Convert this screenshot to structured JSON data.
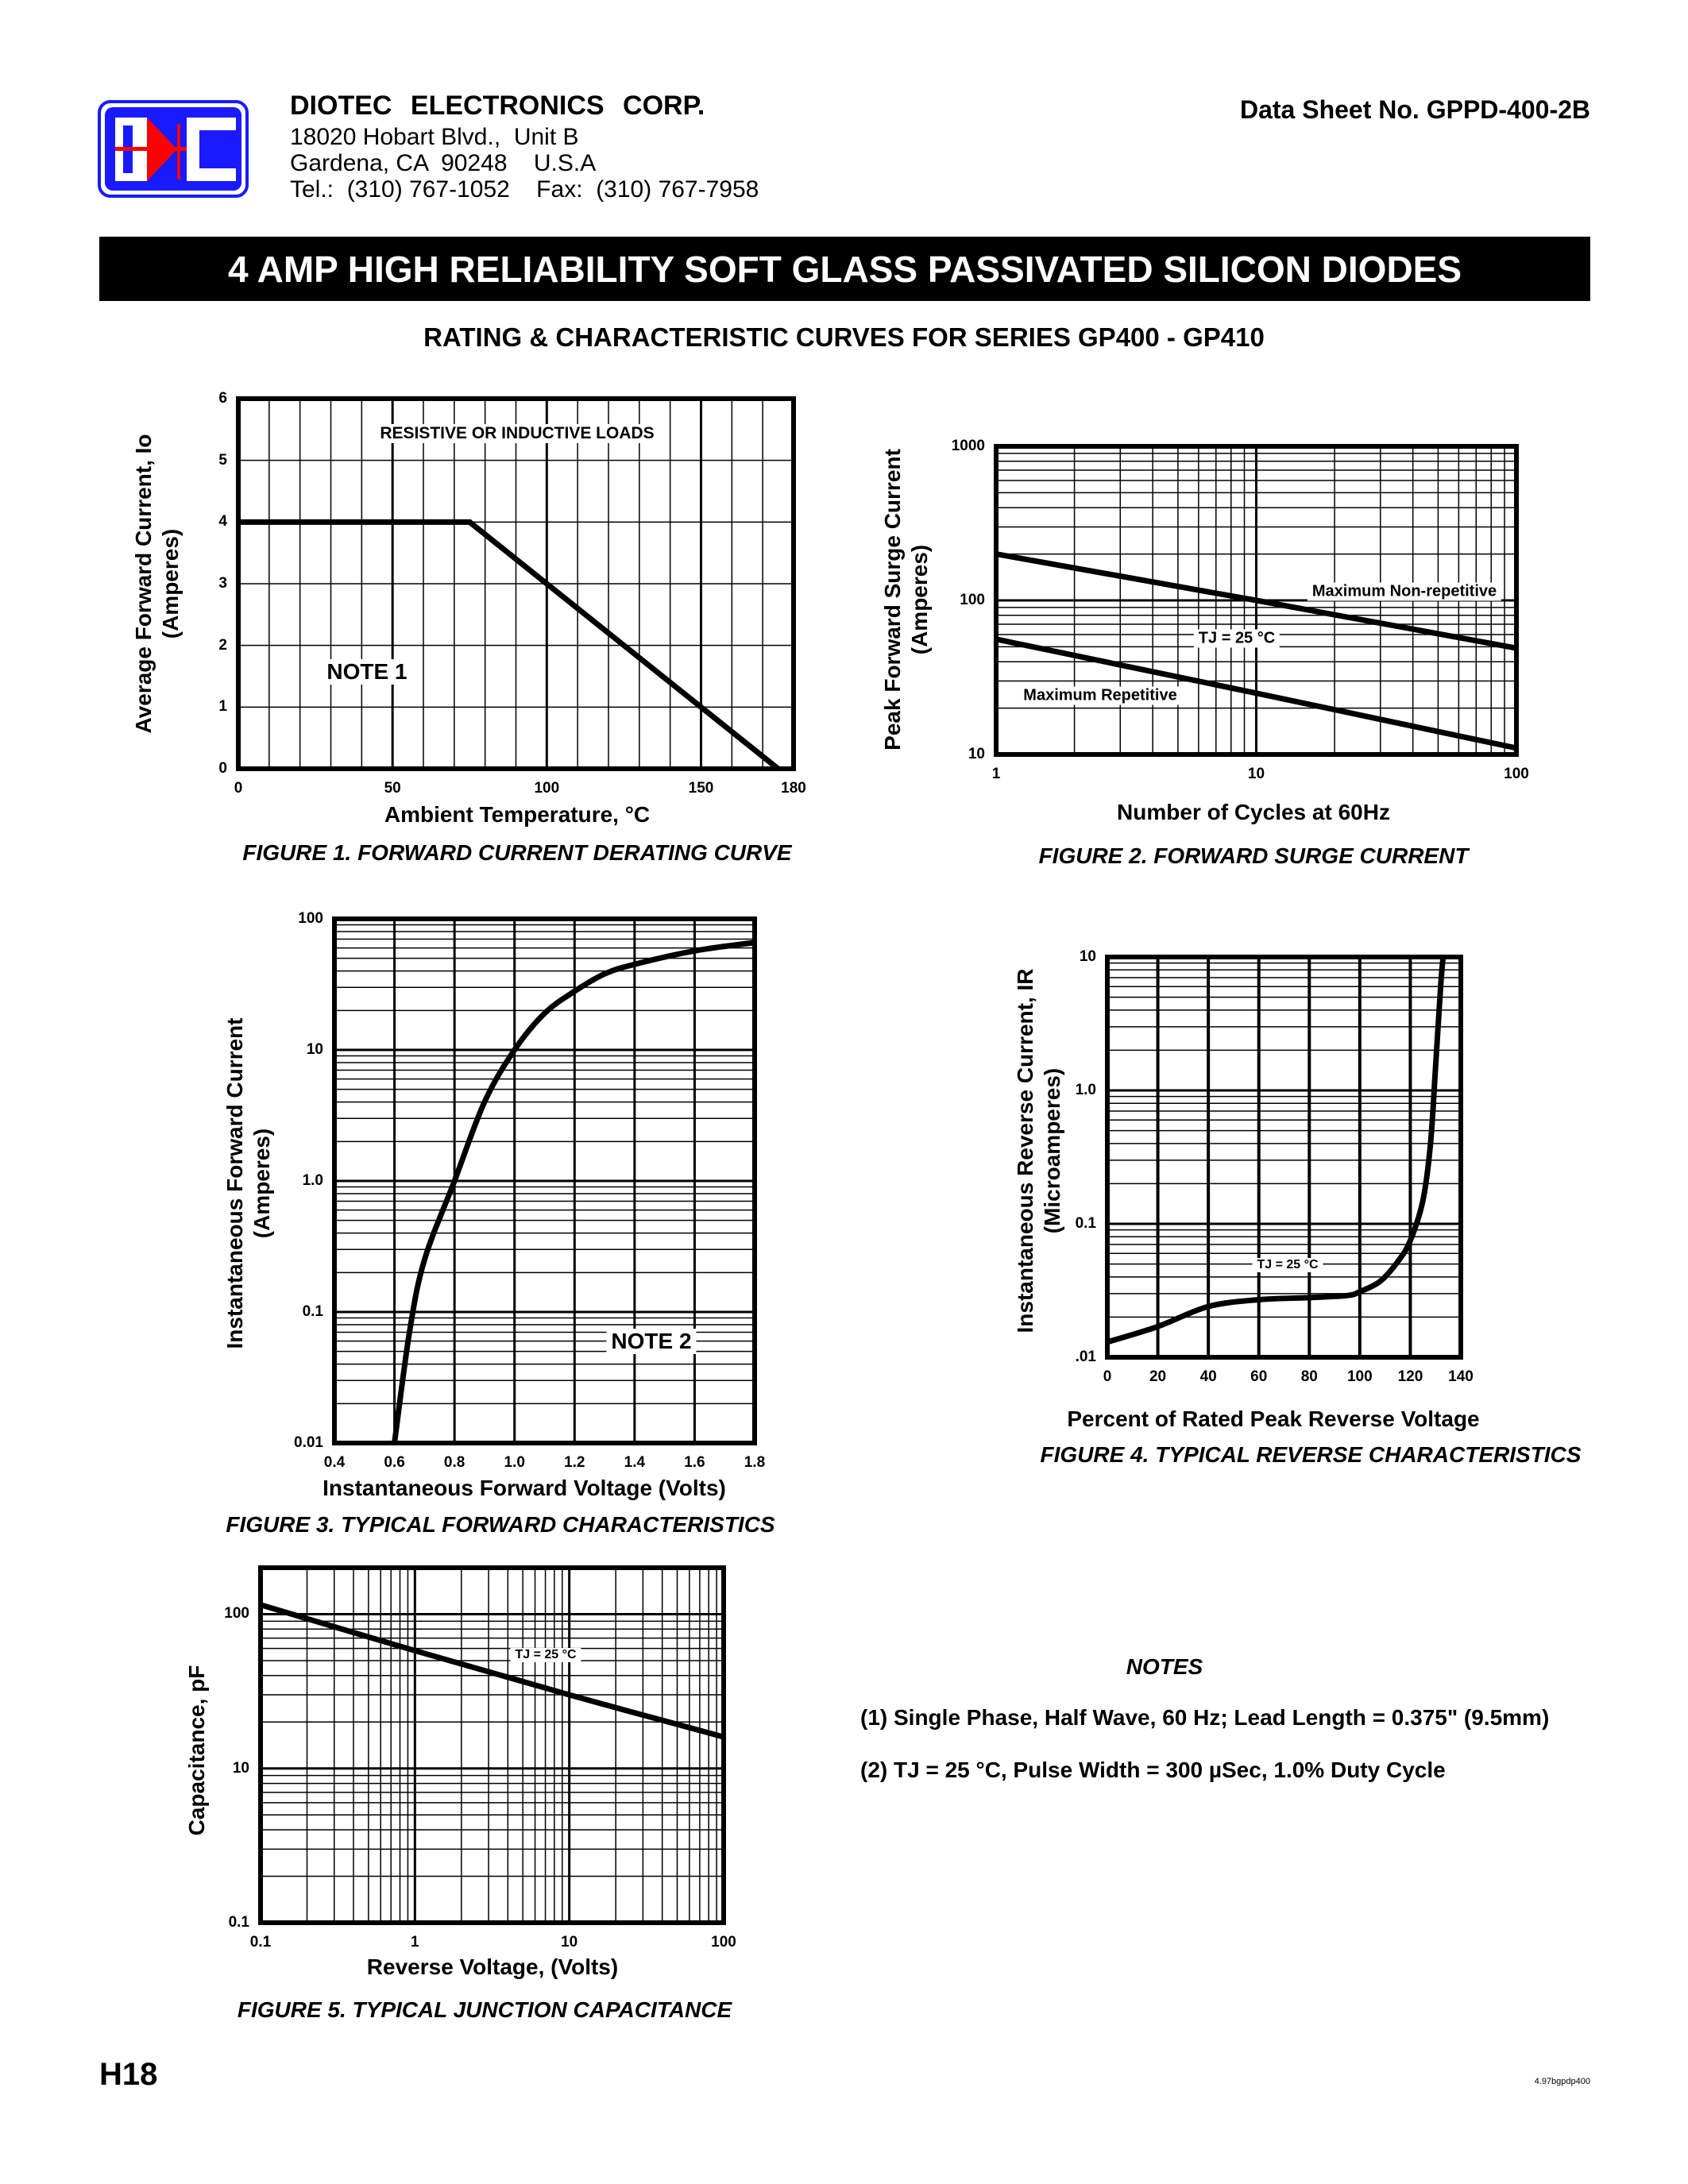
{
  "header": {
    "logo_text": "DIC",
    "company": "DIOTEC ELECTRONICS CORP.",
    "address_lines": [
      "18020 Hobart Blvd.,  Unit B",
      "Gardena, CA  90248    U.S.A",
      "Tel.:  (310) 767-1052    Fax:  (310) 767-7958"
    ],
    "datasheet_no": "Data Sheet No.  GPPD-400-2B",
    "colors": {
      "logo_blue": "#1a1aff",
      "logo_red": "#ff0000"
    }
  },
  "title": "4 AMP HIGH RELIABILITY SOFT GLASS PASSIVATED SILICON DIODES",
  "subtitle": "RATING & CHARACTERISTIC CURVES FOR SERIES GP400 - GP410",
  "chart_data": [
    {
      "type": "line",
      "caption": "FIGURE 1.  FORWARD CURRENT DERATING CURVE",
      "xlabel": "Ambient  Temperature, °C",
      "ylabel": [
        "Average Forward Current, Io",
        "(Amperes)"
      ],
      "x_scale": "linear",
      "y_scale": "linear",
      "xlim": [
        0,
        180
      ],
      "ylim": [
        0,
        6
      ],
      "x_ticks": [
        0,
        50,
        100,
        150,
        180
      ],
      "x_tick_labels": [
        "0",
        "50",
        "100",
        "150",
        "180"
      ],
      "y_ticks": [
        0,
        1,
        2,
        3,
        4,
        5,
        6
      ],
      "y_tick_labels": [
        "0",
        "1",
        "2",
        "3",
        "4",
        "5",
        "6"
      ],
      "grid": true,
      "annotations": [
        "RESISTIVE OR INDUCTIVE LOADS",
        "NOTE 1"
      ],
      "series": [
        {
          "x": [
            0,
            75,
            175
          ],
          "y": [
            4,
            4,
            0
          ]
        }
      ]
    },
    {
      "type": "line",
      "caption": "FIGURE 2.  FORWARD SURGE CURRENT",
      "xlabel": "Number of Cycles at 60Hz",
      "ylabel": [
        "Peak Forward Surge Current",
        "(Amperes)"
      ],
      "x_scale": "log",
      "y_scale": "log",
      "xlim": [
        1,
        100
      ],
      "ylim": [
        10,
        1000
      ],
      "x_ticks": [
        1,
        10,
        100
      ],
      "x_tick_labels": [
        "1",
        "10",
        "100"
      ],
      "y_ticks": [
        10,
        100,
        1000
      ],
      "y_tick_labels": [
        "10",
        "100",
        "1000"
      ],
      "grid": true,
      "annotations": [
        "Maximum Non-repetitive",
        "TJ = 25 °C",
        "Maximum Repetitive"
      ],
      "series": [
        {
          "name": "Maximum Non-repetitive",
          "x": [
            1,
            10,
            100
          ],
          "y": [
            200,
            100,
            49
          ]
        },
        {
          "name": "Maximum Repetitive",
          "x": [
            1,
            10,
            100
          ],
          "y": [
            56,
            25,
            11
          ]
        }
      ]
    },
    {
      "type": "line",
      "caption": "FIGURE 3.  TYPICAL FORWARD CHARACTERISTICS",
      "xlabel": "Instantaneous Forward Voltage (Volts)",
      "ylabel": [
        "Instantaneous Forward Current",
        "(Amperes)"
      ],
      "x_scale": "linear",
      "y_scale": "log",
      "xlim": [
        0.4,
        1.8
      ],
      "ylim": [
        0.01,
        100
      ],
      "x_ticks": [
        0.4,
        0.6,
        0.8,
        1.0,
        1.2,
        1.4,
        1.6,
        1.8
      ],
      "x_tick_labels": [
        "0.4",
        "0.6",
        "0.8",
        "1.0",
        "1.2",
        "1.4",
        "1.6",
        "1.8"
      ],
      "y_ticks": [
        0.01,
        0.1,
        1,
        10,
        100
      ],
      "y_tick_labels": [
        "0.01",
        "0.1",
        "1.0",
        "10",
        "100"
      ],
      "grid": true,
      "annotations": [
        "NOTE 2"
      ],
      "series": [
        {
          "x": [
            0.6,
            0.65,
            0.7,
            0.8,
            0.9,
            1.0,
            1.1,
            1.2,
            1.3,
            1.4,
            1.6,
            1.8
          ],
          "y": [
            0.01,
            0.07,
            0.25,
            1.0,
            4,
            10,
            19,
            28,
            38,
            45,
            57,
            66
          ]
        }
      ]
    },
    {
      "type": "line",
      "caption": "FIGURE 4.  TYPICAL REVERSE CHARACTERISTICS",
      "xlabel": "Percent of Rated Peak Reverse Voltage",
      "ylabel": [
        "Instantaneous Reverse Current, IR",
        "(Microamperes)"
      ],
      "x_scale": "linear",
      "y_scale": "log",
      "xlim": [
        0,
        140
      ],
      "ylim": [
        0.01,
        10
      ],
      "x_ticks": [
        0,
        20,
        40,
        60,
        80,
        100,
        120,
        140
      ],
      "x_tick_labels": [
        "0",
        "20",
        "40",
        "60",
        "80",
        "100",
        "120",
        "140"
      ],
      "y_ticks": [
        0.01,
        0.1,
        1,
        10
      ],
      "y_tick_labels": [
        ".01",
        "0.1",
        "1.0",
        "10"
      ],
      "grid": true,
      "annotations": [
        "TJ = 25 °C"
      ],
      "series": [
        {
          "x": [
            0,
            20,
            40,
            60,
            80,
            95,
            100,
            108,
            115,
            120,
            125,
            128,
            130,
            132,
            133
          ],
          "y": [
            0.013,
            0.017,
            0.024,
            0.027,
            0.028,
            0.029,
            0.031,
            0.037,
            0.052,
            0.075,
            0.15,
            0.4,
            1.5,
            6,
            10
          ]
        }
      ]
    },
    {
      "type": "line",
      "caption": "FIGURE 5.  TYPICAL JUNCTION CAPACITANCE",
      "xlabel": "Reverse Voltage, (Volts)",
      "ylabel": [
        "Capacitance, pF"
      ],
      "x_scale": "log",
      "y_scale": "log",
      "xlim": [
        0.1,
        100
      ],
      "x_ticks": [
        0.1,
        1,
        10,
        100
      ],
      "x_tick_labels": [
        "0.1",
        "1",
        "10",
        "100"
      ],
      "y_tick_labels": [
        "0.1",
        "10",
        "100"
      ],
      "grid": true,
      "annotations": [
        "TJ = 25 °C"
      ],
      "series": [
        {
          "x": [
            0.1,
            1,
            10,
            100
          ],
          "y": [
            115,
            58,
            30,
            16
          ]
        }
      ]
    }
  ],
  "notes": {
    "heading": "NOTES",
    "items": [
      "(1) Single Phase, Half Wave, 60 Hz; Lead Length = 0.375\" (9.5mm)",
      "(2) TJ = 25 °C, Pulse Width = 300 µSec, 1.0% Duty Cycle"
    ]
  },
  "footer": {
    "page": "H18",
    "code": "4.97bgpdp400"
  }
}
